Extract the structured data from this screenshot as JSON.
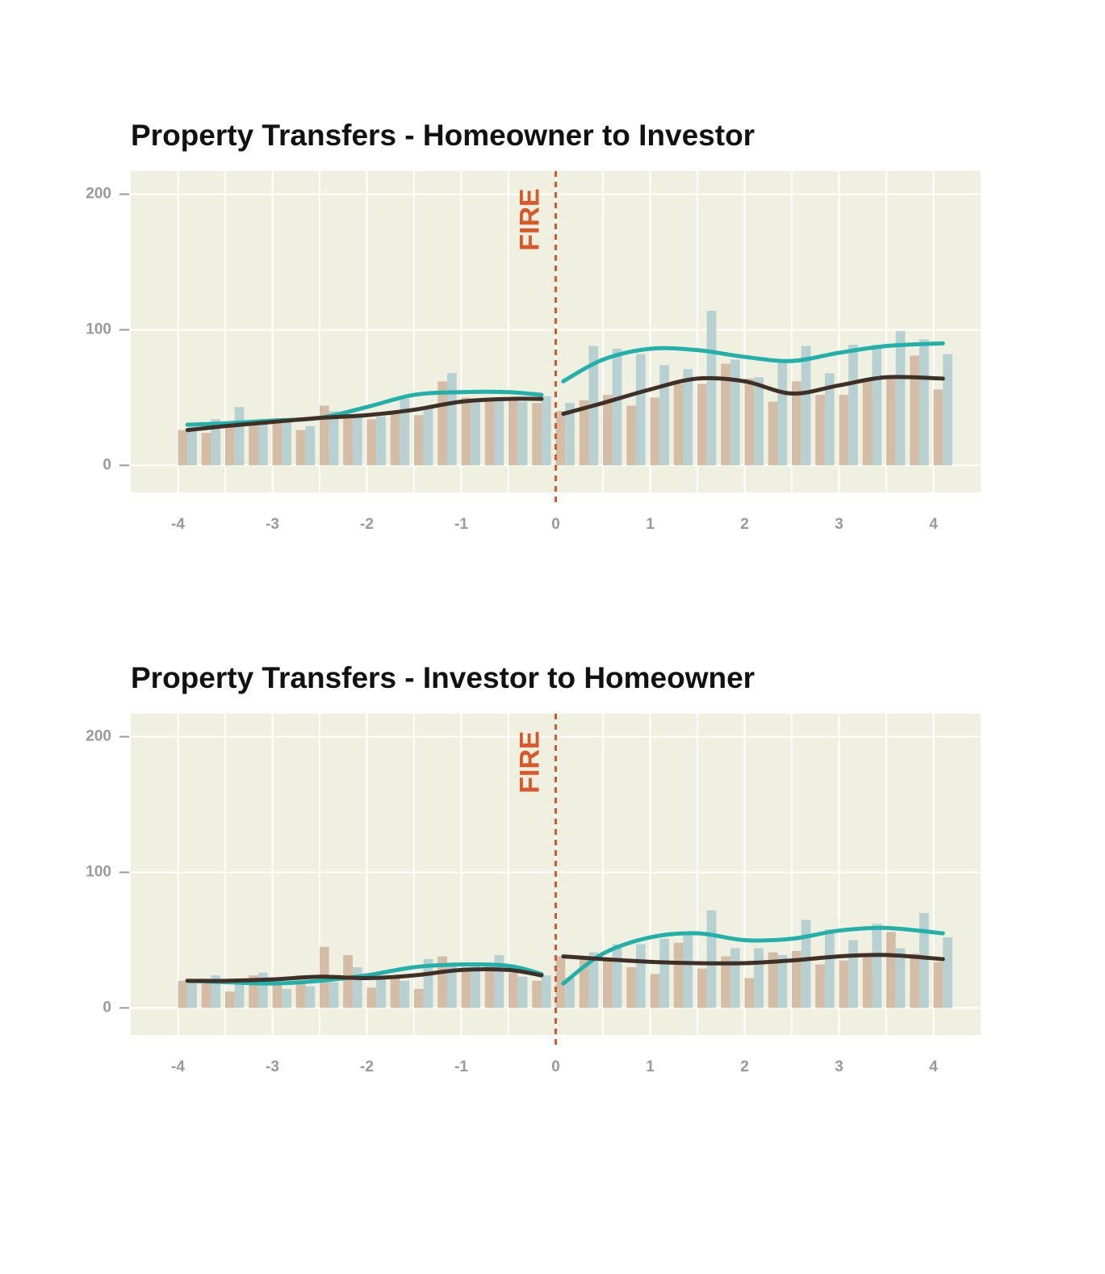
{
  "chart_data": [
    {
      "type": "bar",
      "title": "Property Transfers - Homeowner to Investor",
      "x": [
        -4,
        -3.75,
        -3.5,
        -3.25,
        -3,
        -2.75,
        -2.5,
        -2.25,
        -2,
        -1.75,
        -1.5,
        -1.25,
        -1,
        -0.75,
        -0.5,
        -0.25,
        0,
        0.25,
        0.5,
        0.75,
        1,
        1.25,
        1.5,
        1.75,
        2,
        2.25,
        2.5,
        2.75,
        3,
        3.25,
        3.5,
        3.75,
        4
      ],
      "series": [
        {
          "color": "#d5bca4",
          "values": [
            26,
            24,
            30,
            32,
            32,
            26,
            44,
            38,
            34,
            38,
            37,
            62,
            50,
            50,
            49,
            46,
            40,
            48,
            52,
            44,
            50,
            60,
            60,
            75,
            64,
            47,
            62,
            52,
            52,
            62,
            64,
            81,
            56
          ]
        },
        {
          "color": "#b7d0d1",
          "values": [
            28,
            34,
            43,
            34,
            32,
            29,
            40,
            38,
            36,
            49,
            42,
            68,
            49,
            50,
            47,
            51,
            46,
            88,
            86,
            82,
            74,
            71,
            114,
            78,
            65,
            76,
            88,
            68,
            89,
            89,
            99,
            93,
            82
          ]
        }
      ],
      "lines": {
        "x": [
          -3.9,
          -3.5,
          -3,
          -2.5,
          -2,
          -1.5,
          -1,
          -0.5,
          -0.15,
          0,
          0.08,
          0.5,
          1,
          1.5,
          2,
          2.5,
          3,
          3.5,
          4.1
        ],
        "series": [
          {
            "color": "#22b0aa",
            "values": [
              30,
              31,
              33,
              35,
              43,
              52,
              54,
              54,
              52,
              null,
              62,
              78,
              86,
              85,
              80,
              77,
              83,
              88,
              90
            ]
          },
          {
            "color": "#3e2f27",
            "values": [
              26,
              29,
              32,
              35,
              37,
              41,
              47,
              49,
              49,
              null,
              38,
              46,
              56,
              64,
              62,
              53,
              59,
              65,
              64
            ]
          }
        ]
      },
      "annotations": [
        {
          "text": "FIRE",
          "x": 0,
          "color": "#d9582a"
        }
      ],
      "xlim": [
        -4.5,
        4.5
      ],
      "ylim": [
        -20,
        217
      ],
      "xticks": [
        -4,
        -3,
        -2,
        -1,
        0,
        1,
        2,
        3,
        4
      ],
      "minor_xticks": [
        -3.5,
        -2.5,
        -1.5,
        -0.5,
        0.5,
        1.5,
        2.5,
        3.5
      ],
      "yticks": [
        0,
        100,
        200
      ],
      "grid": true,
      "background": "#f0f0e1"
    },
    {
      "type": "bar",
      "title": "Property Transfers - Investor to Homeowner",
      "x": [
        -4,
        -3.75,
        -3.5,
        -3.25,
        -3,
        -2.75,
        -2.5,
        -2.25,
        -2,
        -1.75,
        -1.5,
        -1.25,
        -1,
        -0.75,
        -0.5,
        -0.25,
        0,
        0.25,
        0.5,
        0.75,
        1,
        1.25,
        1.5,
        1.75,
        2,
        2.25,
        2.5,
        2.75,
        3,
        3.25,
        3.5,
        3.75,
        4
      ],
      "series": [
        {
          "color": "#d5bca4",
          "values": [
            20,
            21,
            12,
            24,
            19,
            18,
            45,
            39,
            15,
            24,
            14,
            38,
            30,
            33,
            26,
            20,
            38,
            38,
            37,
            30,
            25,
            48,
            29,
            38,
            22,
            41,
            42,
            32,
            35,
            40,
            56,
            40,
            34
          ]
        },
        {
          "color": "#b7d0d1",
          "values": [
            20,
            24,
            18,
            26,
            14,
            16,
            19,
            30,
            22,
            20,
            36,
            32,
            33,
            39,
            23,
            24,
            22,
            41,
            47,
            47,
            51,
            55,
            72,
            44,
            44,
            39,
            65,
            58,
            50,
            62,
            44,
            70,
            52
          ]
        }
      ],
      "lines": {
        "x": [
          -3.9,
          -3.5,
          -3,
          -2.5,
          -2,
          -1.5,
          -1,
          -0.5,
          -0.15,
          0,
          0.08,
          0.5,
          1,
          1.5,
          2,
          2.5,
          3,
          3.5,
          4.1
        ],
        "series": [
          {
            "color": "#22b0aa",
            "values": [
              20,
              19,
              18,
              20,
              24,
              30,
              32,
              31,
              25,
              null,
              18,
              40,
              52,
              55,
              50,
              51,
              57,
              59,
              55
            ]
          },
          {
            "color": "#3e2f27",
            "values": [
              20,
              20,
              21,
              23,
              22,
              24,
              28,
              28,
              24,
              null,
              38,
              36,
              34,
              33,
              33,
              35,
              38,
              39,
              36
            ]
          }
        ]
      },
      "annotations": [
        {
          "text": "FIRE",
          "x": 0,
          "color": "#d9582a"
        }
      ],
      "xlim": [
        -4.5,
        4.5
      ],
      "ylim": [
        -20,
        217
      ],
      "xticks": [
        -4,
        -3,
        -2,
        -1,
        0,
        1,
        2,
        3,
        4
      ],
      "minor_xticks": [
        -3.5,
        -2.5,
        -1.5,
        -0.5,
        0.5,
        1.5,
        2.5,
        3.5
      ],
      "yticks": [
        0,
        100,
        200
      ],
      "grid": true,
      "background": "#f0f0e1"
    }
  ]
}
